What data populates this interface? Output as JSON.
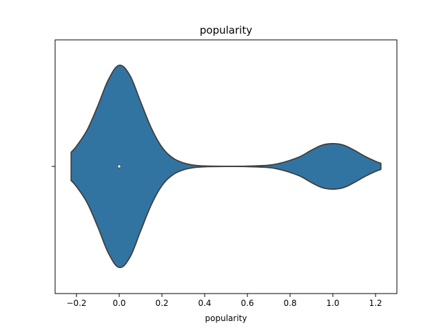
{
  "chart_data": {
    "type": "violin",
    "title": "popularity",
    "xlabel": "popularity",
    "ylabel": "",
    "orientation": "horizontal",
    "xlim": [
      -0.3,
      1.3
    ],
    "xticks": [
      -0.2,
      0.0,
      0.2,
      0.4,
      0.6,
      0.8,
      1.0,
      1.2
    ],
    "xtick_labels": [
      "−0.2",
      "0.0",
      "0.2",
      "0.4",
      "0.6",
      "0.8",
      "1.0",
      "1.2"
    ],
    "grid": false,
    "legend": "none",
    "series": [
      {
        "median": 0.0,
        "support": [
          -0.225,
          1.225
        ],
        "density_profile": {
          "x": [
            -0.225,
            -0.2,
            -0.15,
            -0.1,
            -0.05,
            0.0,
            0.05,
            0.1,
            0.15,
            0.2,
            0.25,
            0.3,
            0.35,
            0.4,
            0.5,
            0.6,
            0.7,
            0.75,
            0.8,
            0.85,
            0.9,
            0.95,
            1.0,
            1.05,
            1.1,
            1.15,
            1.2,
            1.225
          ],
          "relative_density": [
            0.14,
            0.2,
            0.36,
            0.6,
            0.86,
            1.0,
            0.9,
            0.64,
            0.38,
            0.19,
            0.085,
            0.035,
            0.012,
            0.004,
            0.001,
            0.002,
            0.012,
            0.03,
            0.06,
            0.1,
            0.16,
            0.21,
            0.225,
            0.21,
            0.16,
            0.1,
            0.05,
            0.03
          ]
        }
      }
    ],
    "colors": {
      "violin_fill": "#3274a1",
      "violin_edge": "#3f3f3f",
      "median_marker": "#ffffff",
      "axis": "#000000"
    }
  }
}
